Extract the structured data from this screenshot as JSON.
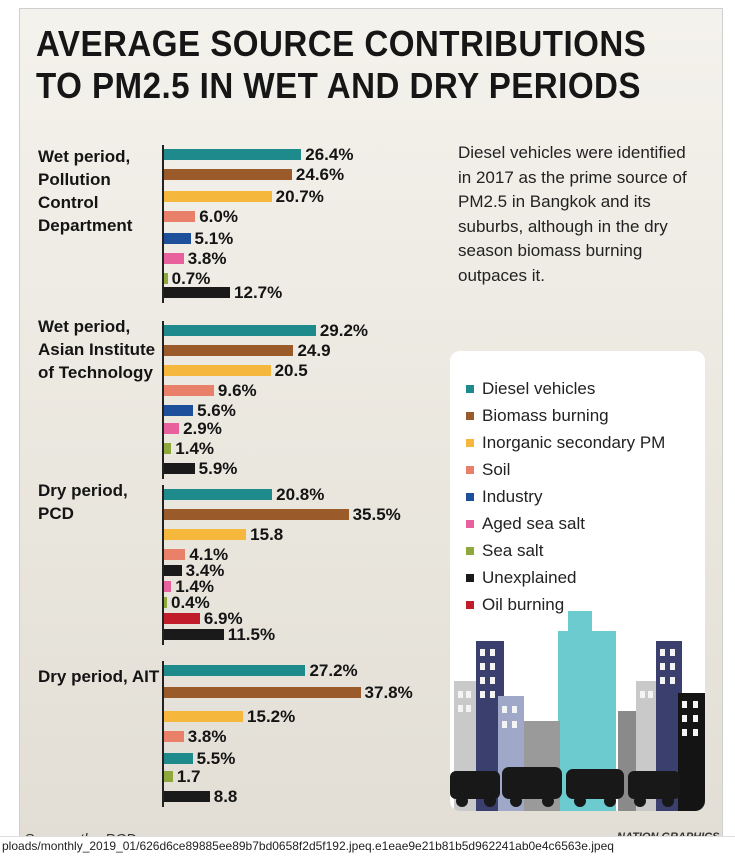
{
  "title_line1": "AVERAGE SOURCE CONTRIBUTIONS",
  "title_line2": "TO PM2.5 IN WET AND DRY PERIODS",
  "note": "Diesel vehicles were identified in 2017 as the prime source of PM2.5 in Bangkok and its suburbs, although in the dry season biomass burning outpaces it.",
  "source": "Source: the PCD",
  "credit": "NATION GRAPHICS",
  "url": "ploads/monthly_2019_01/626d6ce89885ee89b7bd0658f2d5f192.jpeq.e1eae9e21b81b5d962241ab0e4c6563e.jpeq",
  "legend": [
    {
      "name": "Diesel vehicles",
      "color": "#1e8a8c"
    },
    {
      "name": "Biomass burning",
      "color": "#9a5a2a"
    },
    {
      "name": "Inorganic secondary PM",
      "color": "#f5b83d"
    },
    {
      "name": "Soil",
      "color": "#e8806a"
    },
    {
      "name": "Industry",
      "color": "#1d4f9a"
    },
    {
      "name": "Aged sea salt",
      "color": "#e8609c"
    },
    {
      "name": "Sea salt",
      "color": "#8ea83c"
    },
    {
      "name": "Unexplained",
      "color": "#1a1a1a"
    },
    {
      "name": "Oil burning",
      "color": "#c01c2a"
    }
  ],
  "chart_data": [
    {
      "type": "bar",
      "title": "Wet period, Pollution Control Department",
      "categories": [
        "Diesel vehicles",
        "Biomass burning",
        "Inorganic secondary PM",
        "Soil",
        "Industry",
        "Aged sea salt",
        "Sea salt",
        "Unexplained"
      ],
      "values": [
        26.4,
        24.6,
        20.7,
        6.0,
        5.1,
        3.8,
        0.7,
        12.7
      ],
      "labels": [
        "26.4%",
        "24.6%",
        "20.7%",
        "6.0%",
        "5.1%",
        "3.8%",
        "0.7%",
        "12.7%"
      ]
    },
    {
      "type": "bar",
      "title": "Wet period, Asian Institute of Technology",
      "categories": [
        "Diesel vehicles",
        "Biomass burning",
        "Inorganic secondary PM",
        "Soil",
        "Industry",
        "Aged sea salt",
        "Sea salt",
        "Unexplained"
      ],
      "values": [
        29.2,
        24.9,
        20.5,
        9.6,
        5.6,
        2.9,
        1.4,
        5.9
      ],
      "labels": [
        "29.2%",
        "24.9",
        "20.5",
        "9.6%",
        "5.6%",
        "2.9%",
        "1.4%",
        "5.9%"
      ]
    },
    {
      "type": "bar",
      "title": "Dry period, PCD",
      "categories": [
        "Diesel vehicles",
        "Biomass burning",
        "Inorganic secondary PM",
        "Soil",
        "Unexplained",
        "Aged sea salt",
        "Sea salt",
        "Oil burning",
        "Unexplained"
      ],
      "values": [
        20.8,
        35.5,
        15.8,
        4.1,
        3.4,
        1.4,
        0.4,
        6.9,
        11.5
      ],
      "labels": [
        "20.8%",
        "35.5%",
        "15.8",
        "4.1%",
        "3.4%",
        "1.4%",
        "0.4%",
        "6.9%",
        "11.5%"
      ]
    },
    {
      "type": "bar",
      "title": "Dry period, AIT",
      "categories": [
        "Diesel vehicles",
        "Biomass burning",
        "Inorganic secondary PM",
        "Soil",
        "Diesel vehicles",
        "Sea salt",
        "Unexplained"
      ],
      "values": [
        27.2,
        37.8,
        15.2,
        3.8,
        5.5,
        1.7,
        8.8
      ],
      "labels": [
        "27.2%",
        "37.8%",
        "15.2%",
        "3.8%",
        "5.5%",
        "1.7",
        "8.8"
      ]
    }
  ]
}
